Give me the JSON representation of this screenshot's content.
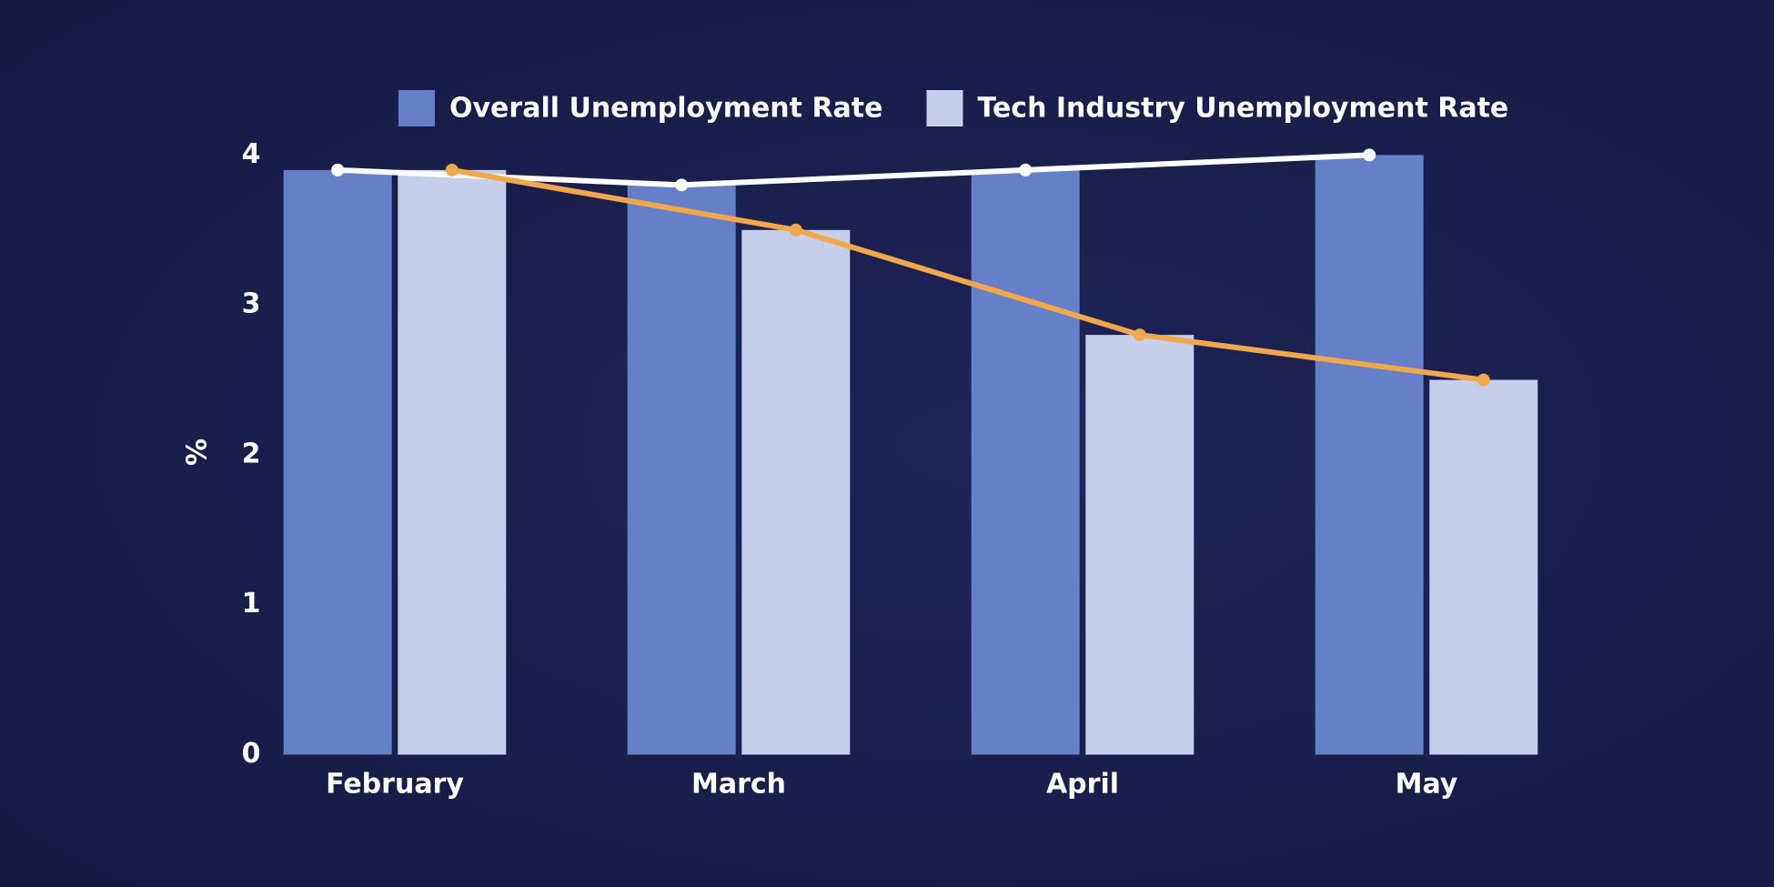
{
  "chart_data": {
    "type": "bar",
    "categories": [
      "February",
      "March",
      "April",
      "May"
    ],
    "series": [
      {
        "name": "Overall Unemployment Rate",
        "color": "#6580c8",
        "line_color": "#ffffff",
        "values": [
          3.9,
          3.8,
          3.9,
          4.0
        ]
      },
      {
        "name": "Tech Industry Unemployment Rate",
        "color": "#c5cfea",
        "line_color": "#f0a84a",
        "values": [
          3.9,
          3.5,
          2.8,
          2.5
        ]
      }
    ],
    "ylabel": "%",
    "ylim": [
      0,
      4
    ],
    "yticks": [
      0,
      1,
      2,
      3,
      4
    ],
    "grid": false,
    "legend": "top"
  }
}
